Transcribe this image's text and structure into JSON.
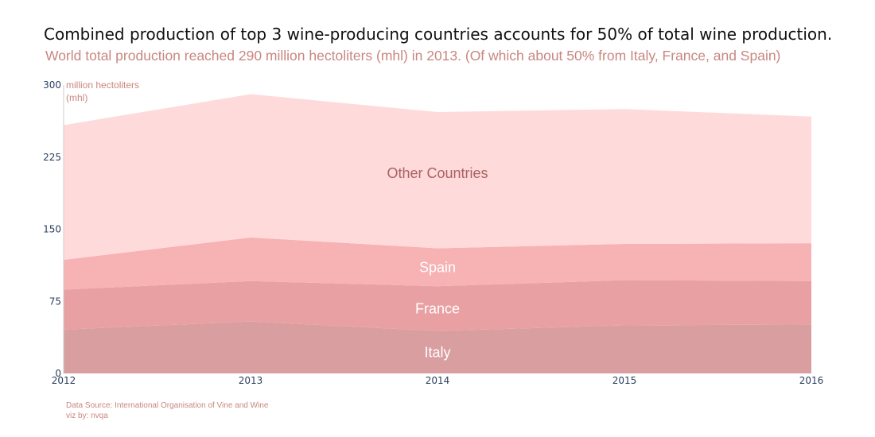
{
  "title": "Combined production of top 3 wine-producing countries accounts for 50% of total wine production.",
  "subtitle": "World total production reached 290 million hectoliters (mhl) in 2013. (Of which about 50% from Italy, France, and Spain)",
  "footer": {
    "source": "Data Source: International Organisation of Vine and Wine",
    "credit": "viz by: nvqa"
  },
  "chart_data": {
    "type": "area",
    "stacked": true,
    "x": [
      "2012",
      "2013",
      "2014",
      "2015",
      "2016"
    ],
    "ylabel_lines": [
      "million hectoliters",
      "(mhl)"
    ],
    "ylim": [
      0,
      300
    ],
    "yticks": [
      0,
      75,
      150,
      225,
      300
    ],
    "grid": false,
    "legend": "inline labels",
    "series": [
      {
        "name": "Italy",
        "values": [
          45.6,
          54.0,
          44.2,
          50.0,
          50.9
        ],
        "color": "#d99ea0",
        "label_color": "#ffffff"
      },
      {
        "name": "France",
        "values": [
          41.5,
          42.1,
          46.5,
          47.0,
          45.2
        ],
        "color": "#e8a0a2",
        "label_color": "#ffffff"
      },
      {
        "name": "Spain",
        "values": [
          31.1,
          45.3,
          39.5,
          37.7,
          39.3
        ],
        "color": "#f7b2b3",
        "label_color": "#ffffff"
      },
      {
        "name": "Other Countries",
        "values": [
          140.1,
          149.1,
          141.7,
          140.3,
          131.8
        ],
        "color": "#ffdada",
        "label_color": "#a86262"
      }
    ]
  }
}
